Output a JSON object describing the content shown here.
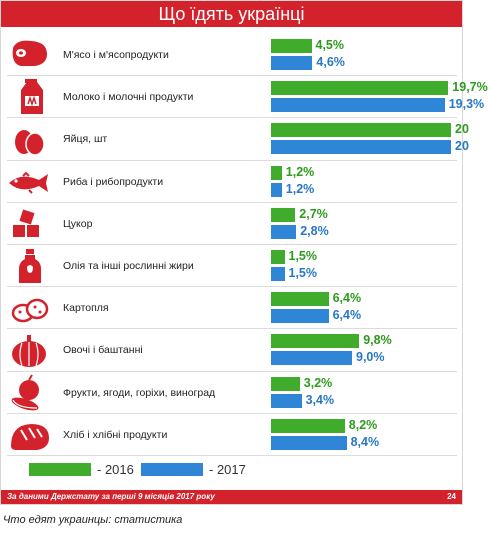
{
  "header": {
    "title": "Що їдять українці"
  },
  "chart_data": {
    "type": "bar",
    "orientation": "horizontal",
    "categories": [
      "М'ясо і м'ясопродукти",
      "Молоко і молочні продукти",
      "Яйця, шт",
      "Риба і рибопродукти",
      "Цукор",
      "Олія та інші рослинні жири",
      "Картопля",
      "Овочі і баштанні",
      "Фрукти, ягоди, горіхи, виноград",
      "Хліб і хлібні продукти"
    ],
    "series": [
      {
        "name": "2016",
        "color": "#3fac2c",
        "values": [
          4.5,
          19.7,
          20,
          1.2,
          2.7,
          1.5,
          6.4,
          9.8,
          3.2,
          8.2
        ],
        "labels": [
          "4,5%",
          "19,7%",
          "20",
          "1,2%",
          "2,7%",
          "1,5%",
          "6,4%",
          "9,8%",
          "3,2%",
          "8,2%"
        ]
      },
      {
        "name": "2017",
        "color": "#2f86d6",
        "values": [
          4.6,
          19.3,
          20,
          1.2,
          2.8,
          1.5,
          6.4,
          9.0,
          3.4,
          8.4
        ],
        "labels": [
          "4,6%",
          "19,3%",
          "20",
          "1,2%",
          "2,8%",
          "1,5%",
          "6,4%",
          "9,0%",
          "3,4%",
          "8,4%"
        ]
      }
    ],
    "icons": [
      "meat-icon",
      "milk-carton-icon",
      "eggs-icon",
      "fish-icon",
      "sugar-cubes-icon",
      "oil-bottle-icon",
      "potatoes-icon",
      "pumpkin-icon",
      "fruits-icon",
      "bread-icon"
    ],
    "icon_color": "#d3222c"
  },
  "legend": {
    "items": [
      {
        "label": "- 2016",
        "color": "#3fac2c"
      },
      {
        "label": "- 2017",
        "color": "#2f86d6"
      }
    ]
  },
  "footer": {
    "source": "За даними Держстату за перші 9 місяців 2017 року",
    "logo": "24"
  },
  "caption": "Что едят украинцы: статистика"
}
